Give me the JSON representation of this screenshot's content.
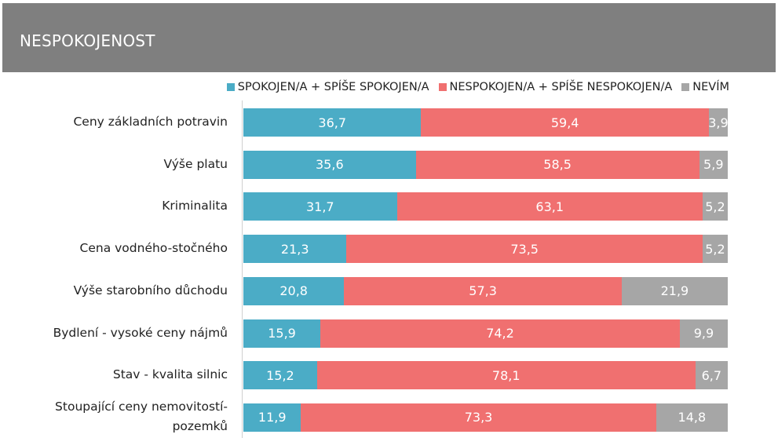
{
  "title": "NESPOKOJENOST",
  "colors": {
    "header_bg": "#7f7f7f",
    "spokojen": "#4bacc6",
    "nespokojen": "#f07070",
    "nevim": "#a6a6a6"
  },
  "chart_data": {
    "type": "bar",
    "orientation": "horizontal",
    "stacked": "100%",
    "legend_position": "top-right",
    "categories": [
      "Ceny základních potravin",
      "Výše platu",
      "Kriminalita",
      "Cena vodného-stočného",
      "Výše starobního důchodu",
      "Bydlení - vysoké ceny nájmů",
      "Stav - kvalita silnic",
      "Stoupající ceny nemovitostí-pozemků"
    ],
    "series": [
      {
        "name": "SPOKOJEN/A + SPÍŠE SPOKOJEN/A",
        "color": "#4bacc6",
        "values": [
          36.7,
          35.6,
          31.7,
          21.3,
          20.8,
          15.9,
          15.2,
          11.9
        ],
        "labels": [
          "36,7",
          "35,6",
          "31,7",
          "21,3",
          "20,8",
          "15,9",
          "15,2",
          "11,9"
        ]
      },
      {
        "name": "NESPOKOJEN/A + SPÍŠE NESPOKOJEN/A",
        "color": "#f07070",
        "values": [
          59.4,
          58.5,
          63.1,
          73.5,
          57.3,
          74.2,
          78.1,
          73.3
        ],
        "labels": [
          "59,4",
          "58,5",
          "63,1",
          "73,5",
          "57,3",
          "74,2",
          "78,1",
          "73,3"
        ]
      },
      {
        "name": "NEVÍM",
        "color": "#a6a6a6",
        "values": [
          3.9,
          5.9,
          5.2,
          5.2,
          21.9,
          9.9,
          6.7,
          14.8
        ],
        "labels": [
          "3,9",
          "5,9",
          "5,2",
          "5,2",
          "21,9",
          "9,9",
          "6,7",
          "14,8"
        ]
      }
    ]
  }
}
